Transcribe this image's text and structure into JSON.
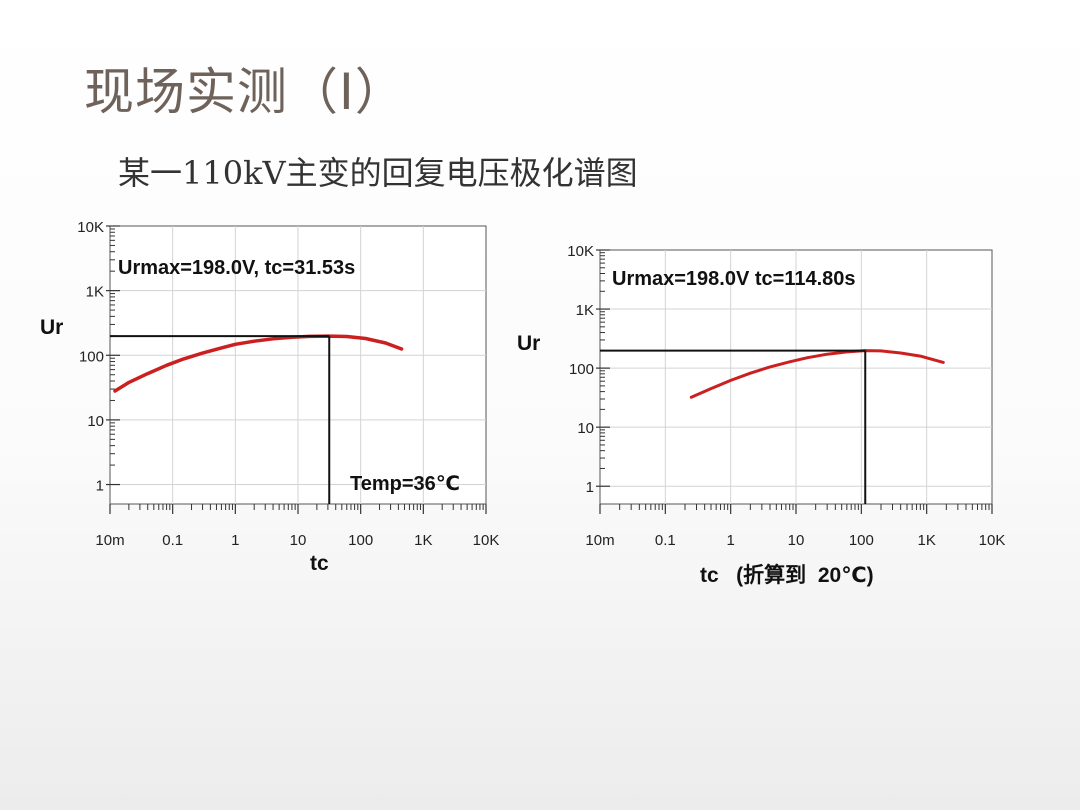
{
  "slide": {
    "title": "现场实测（Ⅰ）",
    "subtitle": "某一110kV主变的回复电压极化谱图"
  },
  "colors": {
    "curve": "#cc1f1f",
    "grid": "#d3d3d3",
    "marker": "#111111"
  },
  "chart_data": [
    {
      "type": "line",
      "x_scale": "log",
      "y_scale": "log",
      "xlim": [
        0.01,
        10000
      ],
      "ylim": [
        0.5,
        10000
      ],
      "x_ticks": [
        0.01,
        0.1,
        1,
        10,
        100,
        1000,
        10000
      ],
      "x_tick_labels": [
        "10m",
        "0.1",
        "1",
        "10",
        "100",
        "1K",
        "10K"
      ],
      "y_ticks": [
        1,
        10,
        100,
        1000,
        10000
      ],
      "y_tick_labels": [
        "1",
        "10",
        "100",
        "1K",
        "10K"
      ],
      "xlabel": "tc",
      "ylabel": "Ur",
      "annotation": "Urmax=198.0V, tc=31.53s",
      "temp_label": "Temp=36℃",
      "peak": {
        "x": 31.53,
        "y": 198.0
      },
      "grid": true,
      "series": [
        {
          "x": [
            0.012,
            0.02,
            0.04,
            0.08,
            0.15,
            0.3,
            0.6,
            1,
            2,
            4,
            8,
            15,
            31.53,
            60,
            120,
            250,
            450
          ],
          "values": [
            28,
            38,
            52,
            70,
            88,
            108,
            130,
            148,
            165,
            180,
            190,
            196,
            198,
            195,
            182,
            155,
            125
          ]
        }
      ]
    },
    {
      "type": "line",
      "x_scale": "log",
      "y_scale": "log",
      "xlim": [
        0.01,
        10000
      ],
      "ylim": [
        0.5,
        10000
      ],
      "x_ticks": [
        0.01,
        0.1,
        1,
        10,
        100,
        1000,
        10000
      ],
      "x_tick_labels": [
        "10m",
        "0.1",
        "1",
        "10",
        "100",
        "1K",
        "10K"
      ],
      "y_ticks": [
        1,
        10,
        100,
        1000,
        10000
      ],
      "y_tick_labels": [
        "1",
        "10",
        "100",
        "1K",
        "10K"
      ],
      "xlabel": "tc   (折算到  20℃)",
      "ylabel": "Ur",
      "annotation": "Urmax=198.0V    tc=114.80s",
      "temp_label": "",
      "peak": {
        "x": 114.8,
        "y": 198.0
      },
      "grid": true,
      "series": [
        {
          "x": [
            0.25,
            0.5,
            1,
            2,
            4,
            8,
            15,
            30,
            60,
            114.8,
            200,
            400,
            800,
            1800
          ],
          "values": [
            32,
            45,
            62,
            82,
            105,
            128,
            150,
            172,
            188,
            198,
            196,
            180,
            160,
            125
          ]
        }
      ]
    }
  ]
}
